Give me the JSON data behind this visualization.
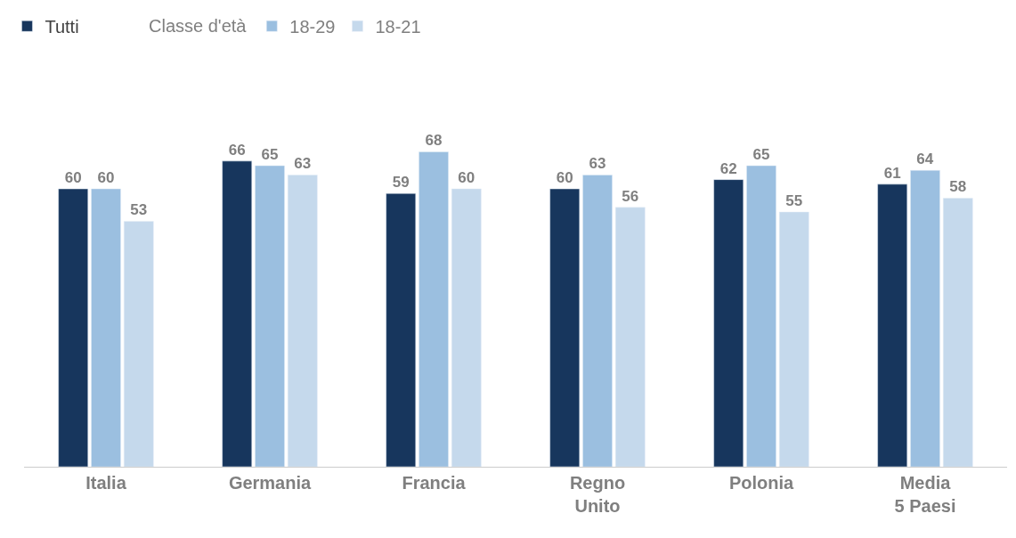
{
  "chart_data": {
    "type": "bar",
    "categories": [
      "Italia",
      "Germania",
      "Francia",
      "Regno Unito",
      "Polonia",
      "Media 5 Paesi"
    ],
    "legend_title": "Classe d'età",
    "series": [
      {
        "name": "Tutti",
        "color": "#17365d",
        "values": [
          60,
          66,
          59,
          60,
          62,
          61
        ]
      },
      {
        "name": "18-29",
        "color": "#9bbfe0",
        "values": [
          60,
          65,
          68,
          63,
          65,
          64
        ]
      },
      {
        "name": "18-21",
        "color": "#c5d9ec",
        "values": [
          53,
          63,
          60,
          56,
          55,
          58
        ]
      }
    ],
    "data_labels": true,
    "legend": "top left"
  }
}
